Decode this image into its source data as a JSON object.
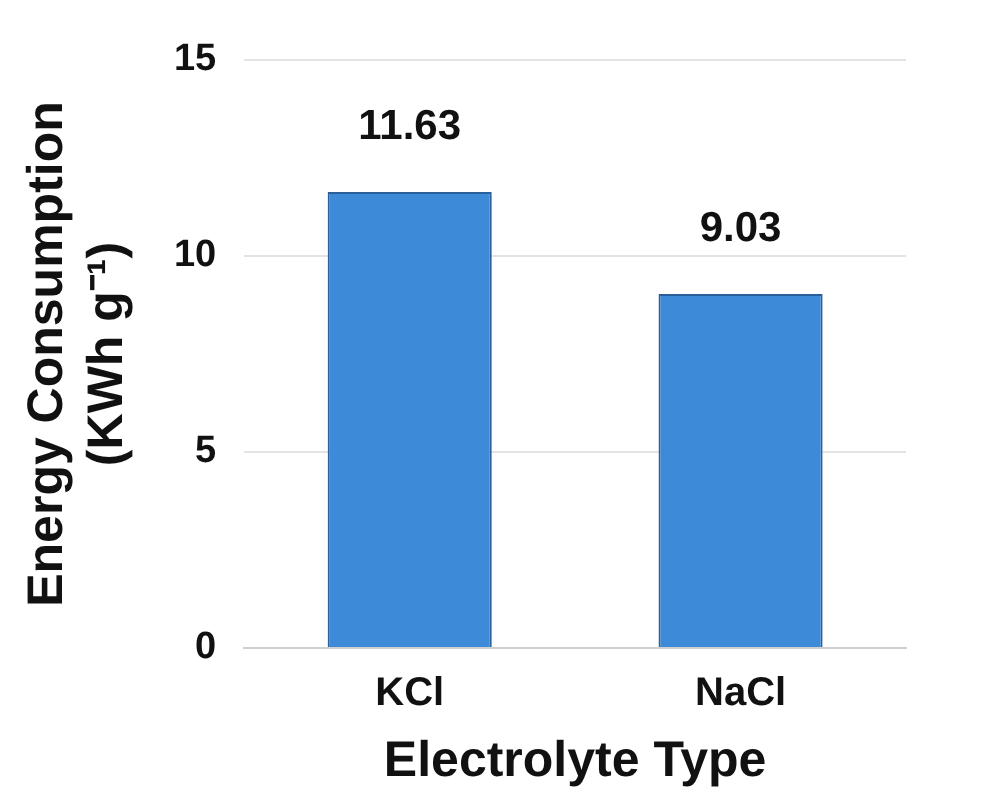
{
  "chart_data": {
    "type": "bar",
    "xlabel": "Electrolyte Type",
    "ylabel": [
      "Energy Consumption",
      "(KWh g⁻¹)"
    ],
    "categories": [
      "KCl",
      "NaCl"
    ],
    "values": [
      11.63,
      9.03
    ],
    "color": "#3d8ad9",
    "ylim": [
      0,
      15
    ],
    "yticks": [
      0,
      5,
      10,
      15
    ],
    "grid": "y",
    "data_labels": true
  }
}
